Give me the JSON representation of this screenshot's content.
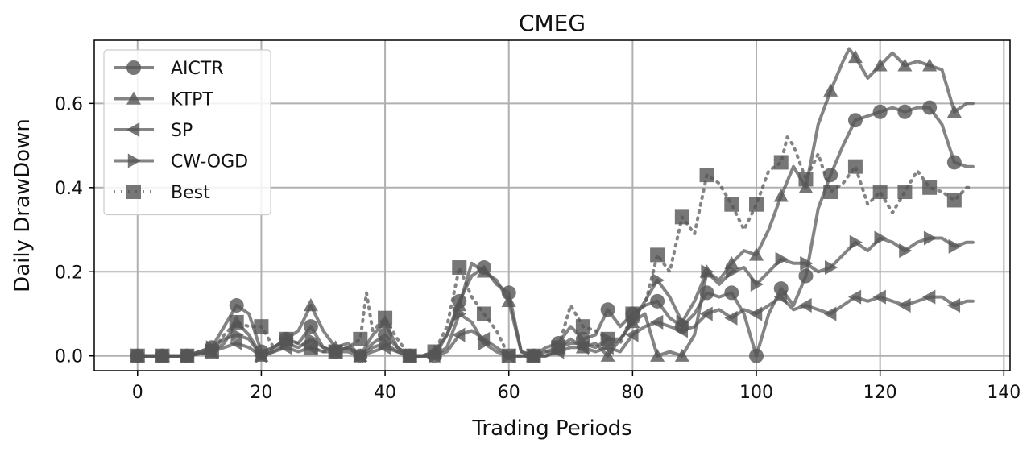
{
  "chart_data": {
    "type": "line",
    "title": "CMEG",
    "xlabel": "Trading Periods",
    "ylabel": "Daily DrawDown",
    "xlim": [
      -7,
      141
    ],
    "ylim": [
      -0.035,
      0.75
    ],
    "xticks": [
      0,
      20,
      40,
      60,
      80,
      100,
      120,
      140
    ],
    "yticks": [
      0.0,
      0.2,
      0.4,
      0.6
    ],
    "ytick_labels": [
      "0.0",
      "0.2",
      "0.4",
      "0.6"
    ],
    "grid": true,
    "legend_position": "top-left",
    "line_color": "#555555",
    "series": [
      {
        "name": "AICTR",
        "marker": "circle",
        "linestyle": "solid",
        "x": [
          0,
          4,
          8,
          12,
          14,
          16,
          18,
          20,
          22,
          24,
          26,
          28,
          30,
          32,
          34,
          36,
          38,
          40,
          42,
          44,
          46,
          48,
          50,
          52,
          54,
          56,
          58,
          60,
          62,
          64,
          66,
          68,
          70,
          72,
          74,
          76,
          78,
          80,
          82,
          84,
          86,
          88,
          90,
          92,
          94,
          96,
          98,
          100,
          102,
          104,
          106,
          108,
          110,
          112,
          114,
          116,
          118,
          120,
          122,
          124,
          126,
          128,
          130,
          132,
          134,
          135
        ],
        "y": [
          0,
          0,
          0,
          0.02,
          0.07,
          0.12,
          0.1,
          0.01,
          0.02,
          0.04,
          0.03,
          0.07,
          0.02,
          0.01,
          0.02,
          0.0,
          0.03,
          0.05,
          0.02,
          0,
          0,
          0,
          0.05,
          0.13,
          0.19,
          0.21,
          0.17,
          0.15,
          0.01,
          0,
          0.02,
          0.03,
          0.07,
          0.04,
          0.05,
          0.11,
          0.07,
          0.1,
          0.12,
          0.13,
          0.09,
          0.07,
          0.1,
          0.15,
          0.14,
          0.15,
          0.1,
          0.0,
          0.1,
          0.16,
          0.12,
          0.19,
          0.35,
          0.43,
          0.5,
          0.56,
          0.57,
          0.58,
          0.59,
          0.58,
          0.59,
          0.59,
          0.55,
          0.46,
          0.45,
          0.45
        ]
      },
      {
        "name": "KTPT",
        "marker": "triangle-up",
        "linestyle": "solid",
        "x": [
          0,
          4,
          8,
          12,
          14,
          16,
          18,
          20,
          22,
          24,
          26,
          28,
          30,
          32,
          34,
          36,
          38,
          40,
          42,
          44,
          46,
          48,
          50,
          52,
          54,
          56,
          58,
          60,
          62,
          64,
          66,
          68,
          70,
          72,
          74,
          76,
          78,
          80,
          82,
          84,
          86,
          88,
          90,
          92,
          94,
          96,
          98,
          100,
          102,
          104,
          106,
          108,
          110,
          112,
          114,
          115,
          116,
          118,
          120,
          122,
          124,
          126,
          128,
          130,
          132,
          134,
          135
        ],
        "y": [
          0,
          0,
          0,
          0.01,
          0.03,
          0.08,
          0.05,
          0.0,
          0.02,
          0.04,
          0.06,
          0.12,
          0.06,
          0.02,
          0.03,
          0.0,
          0.05,
          0.08,
          0.02,
          0,
          0,
          0.01,
          0.05,
          0.12,
          0.22,
          0.2,
          0.18,
          0.13,
          0.01,
          0,
          0.01,
          0.02,
          0.04,
          0.02,
          0.03,
          0.0,
          0.04,
          0.08,
          0.1,
          0.0,
          0.01,
          0.0,
          0.05,
          0.2,
          0.18,
          0.22,
          0.25,
          0.24,
          0.3,
          0.38,
          0.45,
          0.4,
          0.55,
          0.63,
          0.7,
          0.73,
          0.71,
          0.66,
          0.69,
          0.72,
          0.69,
          0.7,
          0.69,
          0.68,
          0.58,
          0.6,
          0.6
        ]
      },
      {
        "name": "SP",
        "marker": "triangle-left",
        "linestyle": "solid",
        "x": [
          0,
          4,
          8,
          12,
          14,
          16,
          18,
          20,
          22,
          24,
          26,
          28,
          30,
          32,
          34,
          36,
          38,
          40,
          42,
          44,
          46,
          48,
          50,
          52,
          54,
          56,
          58,
          60,
          62,
          64,
          66,
          68,
          70,
          72,
          74,
          76,
          78,
          80,
          82,
          84,
          86,
          88,
          90,
          92,
          94,
          96,
          98,
          100,
          102,
          104,
          106,
          108,
          110,
          112,
          114,
          116,
          118,
          120,
          122,
          124,
          126,
          128,
          130,
          132,
          134,
          135
        ],
        "y": [
          0,
          0,
          0,
          0.01,
          0.02,
          0.03,
          0.02,
          0.0,
          0.01,
          0.02,
          0.01,
          0.02,
          0.01,
          0.01,
          0.01,
          0.0,
          0.01,
          0.02,
          0.01,
          0,
          0,
          0,
          0.01,
          0.05,
          0.06,
          0.04,
          0.02,
          0.0,
          0,
          0,
          0.0,
          0.01,
          0.02,
          0.02,
          0.01,
          0.02,
          0.01,
          0.05,
          0.07,
          0.08,
          0.07,
          0.06,
          0.07,
          0.1,
          0.11,
          0.09,
          0.11,
          0.1,
          0.12,
          0.14,
          0.11,
          0.12,
          0.11,
          0.1,
          0.12,
          0.14,
          0.13,
          0.14,
          0.13,
          0.12,
          0.13,
          0.14,
          0.14,
          0.12,
          0.13,
          0.13
        ]
      },
      {
        "name": "CW-OGD",
        "marker": "triangle-right",
        "linestyle": "solid",
        "x": [
          0,
          4,
          8,
          12,
          14,
          16,
          18,
          20,
          22,
          24,
          26,
          28,
          30,
          32,
          34,
          36,
          38,
          40,
          42,
          44,
          46,
          48,
          50,
          52,
          54,
          56,
          58,
          60,
          62,
          64,
          66,
          68,
          70,
          72,
          74,
          76,
          78,
          80,
          82,
          84,
          86,
          88,
          90,
          92,
          94,
          96,
          98,
          100,
          102,
          104,
          106,
          108,
          110,
          112,
          114,
          116,
          118,
          120,
          122,
          124,
          126,
          128,
          130,
          132,
          134,
          135
        ],
        "y": [
          0,
          0,
          0,
          0.02,
          0.04,
          0.05,
          0.04,
          0.0,
          0.01,
          0.03,
          0.02,
          0.04,
          0.02,
          0.01,
          0.02,
          0.0,
          0.02,
          0.03,
          0.01,
          0,
          0,
          0,
          0.02,
          0.1,
          0.08,
          0.03,
          0.01,
          0.0,
          0,
          0,
          0.0,
          0.02,
          0.03,
          0.03,
          0.02,
          0.04,
          0.04,
          0.08,
          0.13,
          0.18,
          0.14,
          0.08,
          0.13,
          0.2,
          0.17,
          0.2,
          0.21,
          0.17,
          0.2,
          0.23,
          0.22,
          0.22,
          0.2,
          0.21,
          0.24,
          0.27,
          0.25,
          0.28,
          0.27,
          0.25,
          0.27,
          0.28,
          0.28,
          0.26,
          0.27,
          0.27
        ]
      },
      {
        "name": "Best",
        "marker": "square",
        "linestyle": "dotted",
        "x": [
          0,
          4,
          8,
          12,
          14,
          16,
          18,
          20,
          22,
          24,
          26,
          28,
          30,
          32,
          34,
          36,
          37,
          38,
          40,
          42,
          44,
          46,
          48,
          50,
          52,
          54,
          56,
          58,
          60,
          62,
          64,
          66,
          68,
          70,
          72,
          74,
          76,
          78,
          80,
          82,
          84,
          86,
          88,
          90,
          92,
          94,
          96,
          98,
          100,
          102,
          104,
          105,
          106,
          108,
          110,
          112,
          114,
          116,
          118,
          120,
          122,
          124,
          126,
          128,
          130,
          132,
          134,
          135
        ],
        "y": [
          0,
          0,
          0,
          0.01,
          0.05,
          0.08,
          0.07,
          0.07,
          0.02,
          0.04,
          0.03,
          0.02,
          0.01,
          0.01,
          0.02,
          0.04,
          0.15,
          0.06,
          0.09,
          0.04,
          0,
          0,
          0.01,
          0.07,
          0.21,
          0.14,
          0.1,
          0.06,
          0.0,
          0,
          0,
          0.01,
          0.02,
          0.12,
          0.07,
          0.06,
          0.04,
          0.03,
          0.1,
          0.12,
          0.24,
          0.2,
          0.33,
          0.29,
          0.43,
          0.41,
          0.36,
          0.3,
          0.36,
          0.44,
          0.46,
          0.52,
          0.5,
          0.42,
          0.48,
          0.39,
          0.41,
          0.45,
          0.36,
          0.39,
          0.34,
          0.39,
          0.44,
          0.4,
          0.39,
          0.37,
          0.4,
          0.4
        ]
      }
    ]
  }
}
